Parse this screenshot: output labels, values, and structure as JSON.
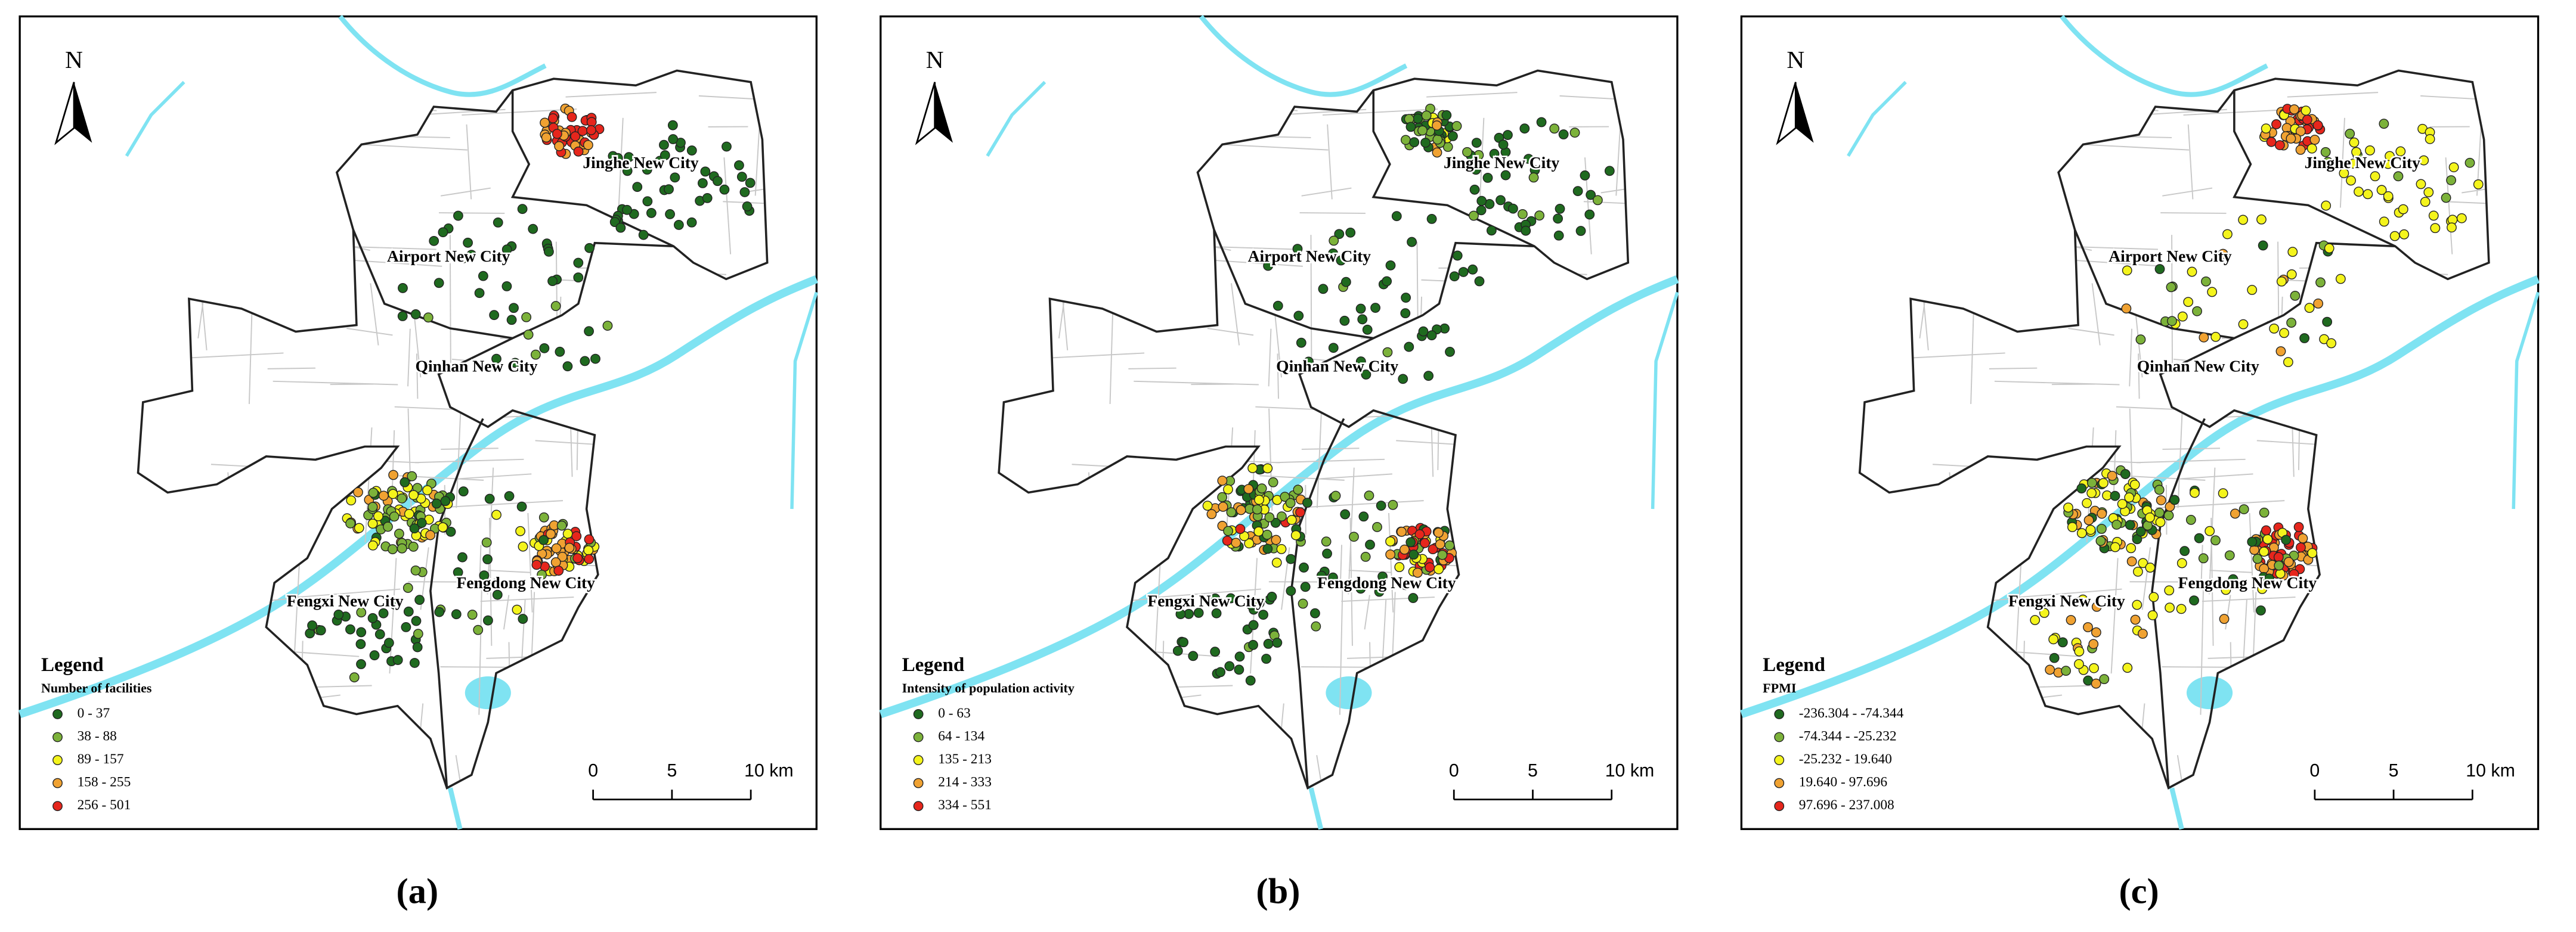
{
  "panels": [
    {
      "label": "(a)",
      "north": "N",
      "districts": [
        "Jinghe New City",
        "Airport New City",
        "Qinhan New City",
        "Fengdong New City",
        "Fengxi New City"
      ],
      "legend": {
        "title": "Legend",
        "subtitle": "Number of facilities",
        "classes": [
          {
            "label": "0 - 37",
            "color": "#1f6a1f"
          },
          {
            "label": "38 - 88",
            "color": "#7cb23a"
          },
          {
            "label": "89 - 157",
            "color": "#f4f41c"
          },
          {
            "label": "158 - 255",
            "color": "#f0a232"
          },
          {
            "label": "256 - 501",
            "color": "#e6261c"
          }
        ]
      },
      "scale": {
        "ticks": [
          0,
          5,
          {
            "value": 10,
            "label": "10 km"
          }
        ]
      }
    },
    {
      "label": "(b)",
      "north": "N",
      "districts": [
        "Jinghe New City",
        "Airport New City",
        "Qinhan New City",
        "Fengdong New City",
        "Fengxi New City"
      ],
      "legend": {
        "title": "Legend",
        "subtitle": "Intensity of population activity",
        "classes": [
          {
            "label": "0 - 63",
            "color": "#1f6a1f"
          },
          {
            "label": "64 - 134",
            "color": "#7cb23a"
          },
          {
            "label": "135 - 213",
            "color": "#f4f41c"
          },
          {
            "label": "214 - 333",
            "color": "#f0a232"
          },
          {
            "label": "334 - 551",
            "color": "#e6261c"
          }
        ]
      },
      "scale": {
        "ticks": [
          0,
          5,
          {
            "value": 10,
            "label": "10 km"
          }
        ]
      }
    },
    {
      "label": "(c)",
      "north": "N",
      "districts": [
        "Jinghe New City",
        "Airport New City",
        "Qinhan New City",
        "Fengdong New City",
        "Fengxi New City"
      ],
      "legend": {
        "title": "Legend",
        "subtitle": "FPMI",
        "classes": [
          {
            "label": "-236.304 - -74.344",
            "color": "#1f6a1f"
          },
          {
            "label": "-74.344 - -25.232",
            "color": "#7cb23a"
          },
          {
            "label": "-25.232 - 19.640",
            "color": "#f4f41c"
          },
          {
            "label": "19.640 - 97.696",
            "color": "#f0a232"
          },
          {
            "label": "97.696 - 237.008",
            "color": "#e6261c"
          }
        ]
      },
      "scale": {
        "ticks": [
          0,
          5,
          {
            "value": 10,
            "label": "10 km"
          }
        ]
      }
    }
  ]
}
